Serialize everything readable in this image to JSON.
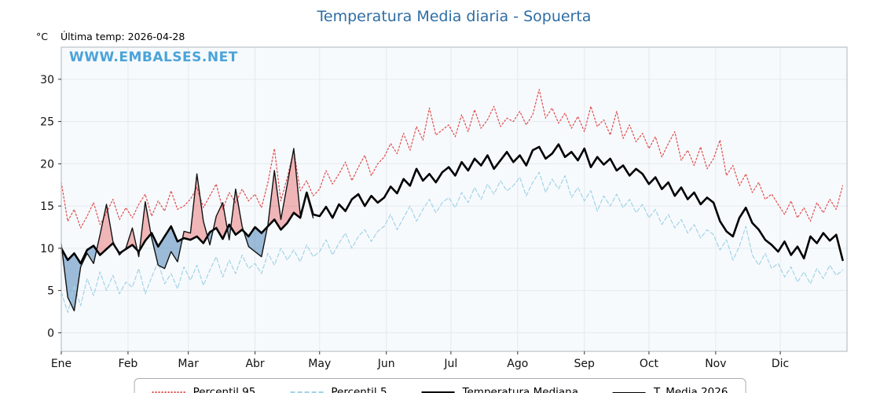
{
  "header": {
    "title": "Temperatura Media diaria - Sopuerta",
    "units_label": "°C",
    "last_temp_label": "Última temp: 2026-04-28",
    "watermark": "WWW.EMBALSES.NET"
  },
  "colors": {
    "title": "#2e6da4",
    "watermark": "#4ba3d9",
    "p95": "#e04b4b",
    "p5": "#a2d3e6",
    "median": "#000000",
    "t2026": "#111111",
    "fill_above": "rgba(228,98,98,0.45)",
    "fill_below": "rgba(80,135,185,0.55)",
    "grid": "#e3e9ef",
    "frame": "#b9c0c7",
    "plot_bg": "#f7fafd",
    "tick": "#333333",
    "tick_label": "#111111"
  },
  "legend": {
    "items": [
      {
        "label": "Percentil 95",
        "style": "dotted",
        "color": "#e04b4b"
      },
      {
        "label": "Percentil 5",
        "style": "dashed",
        "color": "#a2d3e6"
      },
      {
        "label": "Temperatura Mediana",
        "style": "thick-solid",
        "color": "#000000"
      },
      {
        "label": "T. Media 2026",
        "style": "thin-solid",
        "color": "#111111"
      }
    ]
  },
  "chart_data": {
    "type": "line",
    "title": "Temperatura Media diaria - Sopuerta",
    "xlabel": "",
    "ylabel": "°C",
    "x_unit": "day_of_year",
    "xlim": [
      0,
      365
    ],
    "ylim": [
      -2.2,
      33.8
    ],
    "y_ticks": [
      0,
      5,
      10,
      15,
      20,
      25,
      30
    ],
    "grid": true,
    "legend_position": "bottom-center",
    "month_ticks": {
      "labels": [
        "Ene",
        "Feb",
        "Mar",
        "Abr",
        "May",
        "Jun",
        "Jul",
        "Ago",
        "Sep",
        "Oct",
        "Nov",
        "Dic"
      ],
      "start_days": [
        0,
        31,
        59,
        90,
        120,
        151,
        181,
        212,
        243,
        273,
        304,
        334
      ]
    },
    "x": [
      0,
      3,
      6,
      9,
      12,
      15,
      18,
      21,
      24,
      27,
      30,
      33,
      36,
      39,
      42,
      45,
      48,
      51,
      54,
      57,
      60,
      63,
      66,
      69,
      72,
      75,
      78,
      81,
      84,
      87,
      90,
      93,
      96,
      99,
      102,
      105,
      108,
      111,
      114,
      117,
      120,
      123,
      126,
      129,
      132,
      135,
      138,
      141,
      144,
      147,
      150,
      153,
      156,
      159,
      162,
      165,
      168,
      171,
      174,
      177,
      180,
      183,
      186,
      189,
      192,
      195,
      198,
      201,
      204,
      207,
      210,
      213,
      216,
      219,
      222,
      225,
      228,
      231,
      234,
      237,
      240,
      243,
      246,
      249,
      252,
      255,
      258,
      261,
      264,
      267,
      270,
      273,
      276,
      279,
      282,
      285,
      288,
      291,
      294,
      297,
      300,
      303,
      306,
      309,
      312,
      315,
      318,
      321,
      324,
      327,
      330,
      333,
      336,
      339,
      342,
      345,
      348,
      351,
      354,
      357,
      360,
      363
    ],
    "series": [
      {
        "name": "Percentil 95",
        "values": [
          17.8,
          13.2,
          14.6,
          12.4,
          13.8,
          15.4,
          12.8,
          14.2,
          15.8,
          13.4,
          14.8,
          13.6,
          15.2,
          16.4,
          13.8,
          15.6,
          14.4,
          16.8,
          14.6,
          15.0,
          15.8,
          17.2,
          14.8,
          16.2,
          17.6,
          14.6,
          16.6,
          15.4,
          17.0,
          15.6,
          16.4,
          14.8,
          17.8,
          21.8,
          15.6,
          18.4,
          21.6,
          16.8,
          18.0,
          16.2,
          17.0,
          19.2,
          17.6,
          18.8,
          20.2,
          18.0,
          19.6,
          21.0,
          18.6,
          20.0,
          20.8,
          22.4,
          21.2,
          23.6,
          21.6,
          24.4,
          22.8,
          26.6,
          23.4,
          24.0,
          24.6,
          23.2,
          25.8,
          23.8,
          26.4,
          24.2,
          25.2,
          26.8,
          24.4,
          25.4,
          25.0,
          26.2,
          24.6,
          25.8,
          28.8,
          25.4,
          26.6,
          24.8,
          26.0,
          24.2,
          25.6,
          23.8,
          26.8,
          24.4,
          25.2,
          23.4,
          26.2,
          23.0,
          24.6,
          22.6,
          23.6,
          21.8,
          23.2,
          20.8,
          22.4,
          23.8,
          20.4,
          21.6,
          19.8,
          22.0,
          19.4,
          20.6,
          22.8,
          18.6,
          19.8,
          17.4,
          18.8,
          16.6,
          17.8,
          15.8,
          16.4,
          15.2,
          14.0,
          15.6,
          13.6,
          14.8,
          13.2,
          15.4,
          14.2,
          15.8,
          14.6,
          17.4
        ]
      },
      {
        "name": "Percentil 5",
        "values": [
          4.8,
          2.4,
          5.6,
          3.2,
          6.4,
          4.4,
          7.2,
          5.0,
          6.8,
          4.6,
          6.0,
          5.4,
          7.6,
          4.6,
          6.6,
          8.4,
          5.8,
          7.0,
          5.2,
          7.8,
          6.2,
          8.0,
          5.6,
          7.4,
          9.0,
          6.6,
          8.6,
          7.0,
          9.2,
          7.6,
          8.2,
          7.0,
          9.4,
          8.0,
          10.0,
          8.6,
          9.8,
          8.4,
          10.4,
          9.0,
          9.6,
          11.0,
          9.2,
          10.6,
          11.8,
          10.0,
          11.4,
          12.2,
          10.8,
          12.0,
          12.6,
          14.0,
          12.2,
          13.6,
          15.0,
          13.2,
          14.6,
          15.8,
          14.2,
          15.4,
          16.0,
          14.8,
          16.6,
          15.4,
          17.2,
          15.8,
          17.6,
          16.4,
          18.0,
          16.8,
          17.4,
          18.4,
          16.2,
          17.8,
          19.0,
          16.6,
          18.2,
          17.0,
          18.6,
          16.0,
          17.2,
          15.6,
          16.8,
          14.4,
          16.2,
          15.0,
          16.4,
          14.8,
          15.8,
          14.2,
          15.2,
          13.6,
          14.6,
          12.8,
          14.0,
          12.4,
          13.4,
          11.8,
          12.8,
          11.2,
          12.2,
          11.6,
          9.8,
          11.0,
          8.6,
          10.2,
          12.6,
          9.2,
          8.0,
          9.4,
          7.6,
          8.2,
          6.6,
          7.8,
          6.0,
          7.2,
          5.8,
          7.6,
          6.4,
          8.0,
          6.8,
          7.4
        ]
      },
      {
        "name": "Temperatura Mediana",
        "values": [
          10.0,
          8.6,
          9.4,
          8.2,
          9.8,
          10.3,
          9.2,
          9.9,
          10.6,
          9.4,
          9.9,
          10.4,
          9.6,
          10.9,
          11.8,
          10.2,
          11.4,
          12.6,
          10.8,
          11.2,
          11.0,
          11.4,
          10.6,
          11.9,
          12.4,
          11.1,
          12.8,
          11.6,
          12.2,
          11.4,
          12.5,
          11.8,
          12.6,
          13.4,
          12.2,
          13.0,
          14.2,
          13.6,
          16.6,
          14.0,
          13.8,
          14.9,
          13.6,
          15.2,
          14.4,
          15.8,
          16.4,
          15.0,
          16.2,
          15.4,
          16.0,
          17.3,
          16.5,
          18.2,
          17.4,
          19.4,
          18.0,
          18.8,
          17.8,
          19.0,
          19.6,
          18.6,
          20.2,
          19.2,
          20.6,
          19.8,
          21.0,
          19.4,
          20.4,
          21.4,
          20.2,
          21.0,
          19.8,
          21.6,
          22.0,
          20.6,
          21.2,
          22.3,
          20.8,
          21.4,
          20.4,
          21.8,
          19.6,
          20.8,
          19.9,
          20.6,
          19.2,
          19.8,
          18.6,
          19.4,
          18.8,
          17.6,
          18.4,
          17.0,
          17.8,
          16.2,
          17.2,
          15.8,
          16.6,
          15.2,
          16.0,
          15.4,
          13.2,
          12.0,
          11.4,
          13.6,
          14.8,
          13.0,
          12.2,
          11.0,
          10.4,
          9.6,
          10.8,
          9.2,
          10.2,
          8.8,
          11.4,
          10.6,
          11.8,
          10.9,
          11.6,
          8.6
        ]
      },
      {
        "name": "T. Media 2026",
        "end_day": 117,
        "values": [
          10.5,
          4.2,
          2.6,
          7.8,
          9.4,
          8.2,
          11.6,
          15.2,
          10.8,
          9.2,
          10.0,
          12.4,
          9.0,
          15.5,
          11.2,
          8.0,
          7.6,
          9.6,
          8.4,
          12.0,
          11.8,
          18.8,
          13.2,
          10.4,
          13.8,
          15.4,
          11.0,
          17.0,
          12.6,
          10.2,
          9.6,
          9.0,
          12.8,
          19.2,
          13.4,
          17.6,
          21.8,
          14.0,
          16.4,
          13.6
        ]
      }
    ]
  }
}
